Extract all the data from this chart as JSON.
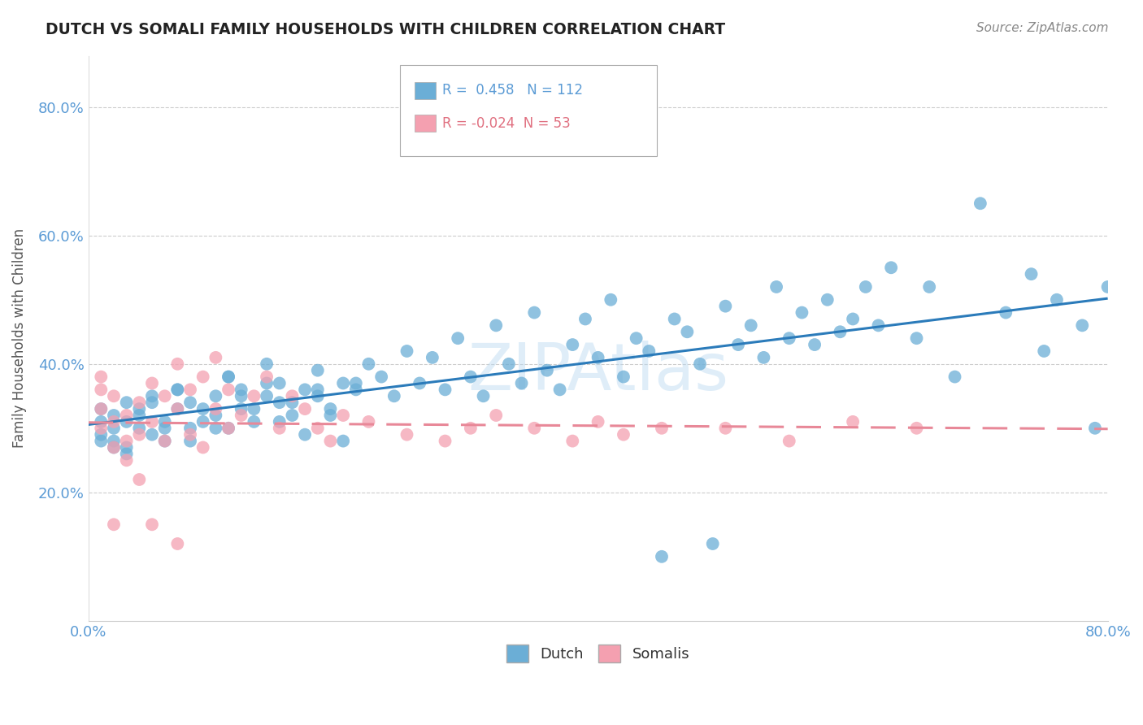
{
  "title": "DUTCH VS SOMALI FAMILY HOUSEHOLDS WITH CHILDREN CORRELATION CHART",
  "source": "Source: ZipAtlas.com",
  "ylabel": "Family Households with Children",
  "xlim": [
    0.0,
    0.8
  ],
  "ylim": [
    0.0,
    0.88
  ],
  "dutch_R": 0.458,
  "dutch_N": 112,
  "somali_R": -0.024,
  "somali_N": 53,
  "dutch_color": "#6baed6",
  "somali_color": "#f4a0b0",
  "dutch_line_color": "#2b7bba",
  "somali_line_color": "#e88898",
  "background_color": "#ffffff",
  "dutch_x": [
    0.01,
    0.01,
    0.01,
    0.02,
    0.02,
    0.02,
    0.03,
    0.03,
    0.03,
    0.04,
    0.04,
    0.05,
    0.05,
    0.06,
    0.06,
    0.07,
    0.07,
    0.08,
    0.08,
    0.09,
    0.1,
    0.1,
    0.11,
    0.11,
    0.12,
    0.12,
    0.13,
    0.14,
    0.14,
    0.15,
    0.15,
    0.16,
    0.17,
    0.18,
    0.18,
    0.19,
    0.2,
    0.21,
    0.22,
    0.23,
    0.24,
    0.25,
    0.26,
    0.27,
    0.28,
    0.29,
    0.3,
    0.31,
    0.32,
    0.33,
    0.34,
    0.35,
    0.36,
    0.37,
    0.38,
    0.39,
    0.4,
    0.41,
    0.42,
    0.43,
    0.44,
    0.45,
    0.46,
    0.47,
    0.48,
    0.49,
    0.5,
    0.51,
    0.52,
    0.53,
    0.54,
    0.55,
    0.56,
    0.57,
    0.58,
    0.59,
    0.6,
    0.61,
    0.62,
    0.63,
    0.65,
    0.66,
    0.68,
    0.7,
    0.72,
    0.74,
    0.75,
    0.76,
    0.78,
    0.79,
    0.8,
    0.01,
    0.02,
    0.03,
    0.04,
    0.05,
    0.06,
    0.07,
    0.08,
    0.09,
    0.1,
    0.11,
    0.12,
    0.13,
    0.14,
    0.15,
    0.16,
    0.17,
    0.18,
    0.19,
    0.2,
    0.21
  ],
  "dutch_y": [
    0.29,
    0.31,
    0.33,
    0.28,
    0.3,
    0.32,
    0.27,
    0.31,
    0.34,
    0.3,
    0.33,
    0.29,
    0.35,
    0.31,
    0.28,
    0.33,
    0.36,
    0.3,
    0.34,
    0.31,
    0.32,
    0.35,
    0.3,
    0.38,
    0.33,
    0.36,
    0.31,
    0.35,
    0.4,
    0.34,
    0.37,
    0.32,
    0.36,
    0.35,
    0.39,
    0.33,
    0.37,
    0.36,
    0.4,
    0.38,
    0.35,
    0.42,
    0.37,
    0.41,
    0.36,
    0.44,
    0.38,
    0.35,
    0.46,
    0.4,
    0.37,
    0.48,
    0.39,
    0.36,
    0.43,
    0.47,
    0.41,
    0.5,
    0.38,
    0.44,
    0.42,
    0.1,
    0.47,
    0.45,
    0.4,
    0.12,
    0.49,
    0.43,
    0.46,
    0.41,
    0.52,
    0.44,
    0.48,
    0.43,
    0.5,
    0.45,
    0.47,
    0.52,
    0.46,
    0.55,
    0.44,
    0.52,
    0.38,
    0.65,
    0.48,
    0.54,
    0.42,
    0.5,
    0.46,
    0.3,
    0.52,
    0.28,
    0.27,
    0.26,
    0.32,
    0.34,
    0.3,
    0.36,
    0.28,
    0.33,
    0.3,
    0.38,
    0.35,
    0.33,
    0.37,
    0.31,
    0.34,
    0.29,
    0.36,
    0.32,
    0.28,
    0.37
  ],
  "somali_x": [
    0.01,
    0.01,
    0.01,
    0.01,
    0.02,
    0.02,
    0.02,
    0.02,
    0.03,
    0.03,
    0.03,
    0.04,
    0.04,
    0.04,
    0.05,
    0.05,
    0.05,
    0.06,
    0.06,
    0.07,
    0.07,
    0.07,
    0.08,
    0.08,
    0.09,
    0.09,
    0.1,
    0.1,
    0.11,
    0.11,
    0.12,
    0.13,
    0.14,
    0.15,
    0.16,
    0.17,
    0.18,
    0.19,
    0.2,
    0.22,
    0.25,
    0.28,
    0.3,
    0.32,
    0.35,
    0.38,
    0.4,
    0.42,
    0.45,
    0.5,
    0.55,
    0.6,
    0.65
  ],
  "somali_y": [
    0.3,
    0.33,
    0.36,
    0.38,
    0.27,
    0.31,
    0.35,
    0.15,
    0.28,
    0.32,
    0.25,
    0.34,
    0.29,
    0.22,
    0.37,
    0.31,
    0.15,
    0.35,
    0.28,
    0.4,
    0.33,
    0.12,
    0.36,
    0.29,
    0.38,
    0.27,
    0.33,
    0.41,
    0.3,
    0.36,
    0.32,
    0.35,
    0.38,
    0.3,
    0.35,
    0.33,
    0.3,
    0.28,
    0.32,
    0.31,
    0.29,
    0.28,
    0.3,
    0.32,
    0.3,
    0.28,
    0.31,
    0.29,
    0.3,
    0.3,
    0.28,
    0.31,
    0.3
  ]
}
